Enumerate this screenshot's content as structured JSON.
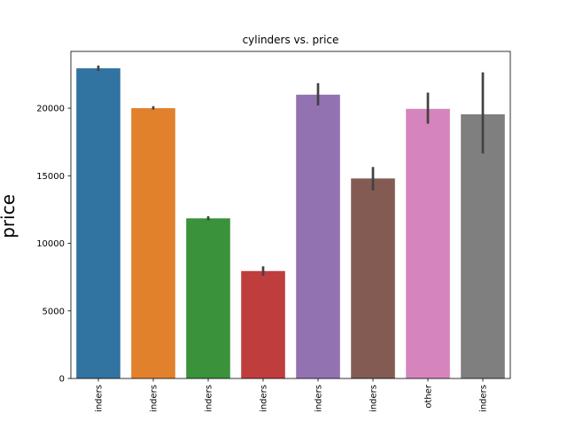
{
  "chart_data": {
    "type": "bar",
    "title": "cylinders vs. price",
    "xlabel": "",
    "ylabel": "price",
    "categories": [
      "inders",
      "inders",
      "inders",
      "inders",
      "inders",
      "inders",
      "other",
      "inders"
    ],
    "values": [
      22950,
      20000,
      11850,
      7950,
      21000,
      14800,
      19950,
      19550
    ],
    "error_low": [
      22750,
      19900,
      11700,
      7600,
      20200,
      13900,
      18850,
      16650
    ],
    "error_high": [
      23150,
      20150,
      12000,
      8300,
      21850,
      15650,
      21150,
      22650
    ],
    "colors": [
      "#3274a1",
      "#e1812c",
      "#3a923a",
      "#c03d3e",
      "#9372b2",
      "#845b53",
      "#d684bd",
      "#7f7f7f"
    ],
    "ylim": [
      0,
      24200
    ],
    "yticks": [
      0,
      5000,
      10000,
      15000,
      20000
    ],
    "ytick_labels": [
      "0",
      "5000",
      "10000",
      "15000",
      "20000"
    ],
    "grid": false,
    "legend": "none"
  }
}
